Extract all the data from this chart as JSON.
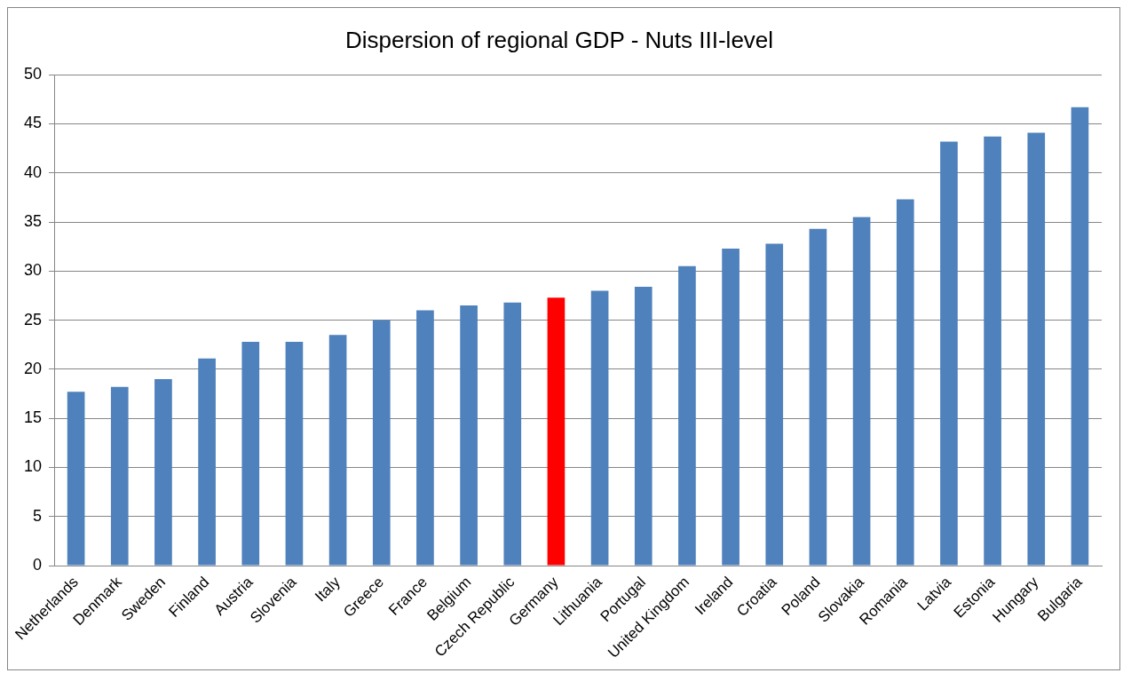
{
  "chart_data": {
    "type": "bar",
    "title": "Dispersion of regional GDP - Nuts III-level",
    "categories": [
      "Netherlands",
      "Denmark",
      "Sweden",
      "Finland",
      "Austria",
      "Slovenia",
      "Italy",
      "Greece",
      "France",
      "Belgium",
      "Czech Republic",
      "Germany",
      "Lithuania",
      "Portugal",
      "United Kingdom",
      "Ireland",
      "Croatia",
      "Poland",
      "Slovakia",
      "Romania",
      "Latvia",
      "Estonia",
      "Hungary",
      "Bulgaria"
    ],
    "values": [
      17.7,
      18.2,
      19.0,
      21.1,
      22.8,
      22.8,
      23.5,
      25.0,
      26.0,
      26.5,
      26.8,
      27.3,
      28.0,
      28.4,
      30.5,
      32.3,
      32.8,
      34.3,
      35.5,
      37.3,
      43.2,
      43.7,
      44.1,
      46.7
    ],
    "colors": [
      "#4f81bd",
      "#4f81bd",
      "#4f81bd",
      "#4f81bd",
      "#4f81bd",
      "#4f81bd",
      "#4f81bd",
      "#4f81bd",
      "#4f81bd",
      "#4f81bd",
      "#4f81bd",
      "#ff0000",
      "#4f81bd",
      "#4f81bd",
      "#4f81bd",
      "#4f81bd",
      "#4f81bd",
      "#4f81bd",
      "#4f81bd",
      "#4f81bd",
      "#4f81bd",
      "#4f81bd",
      "#4f81bd",
      "#4f81bd"
    ],
    "ylim": [
      0,
      50
    ],
    "yticks": [
      0,
      5,
      10,
      15,
      20,
      25,
      30,
      35,
      40,
      45,
      50
    ],
    "grid": "y",
    "legend": false
  }
}
